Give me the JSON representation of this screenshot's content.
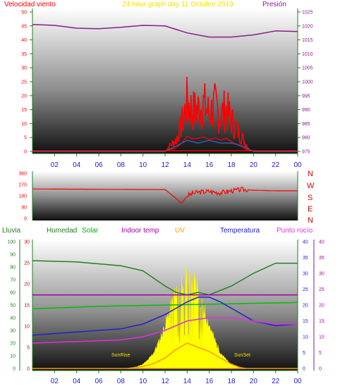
{
  "header": {
    "left": "Velocidad viento",
    "center": "24 hour graph day  11 Octubre 2019",
    "right": "Presión"
  },
  "legend": {
    "lluvia": "Lluvia",
    "humedad": "Humedad",
    "solar": "Solar",
    "indoor": "Indoor temp",
    "uv": "UV",
    "temperatura": "Temperatura",
    "rocio": "Punto rocío"
  },
  "compass": [
    "N",
    "W",
    "S",
    "E",
    "N"
  ],
  "annotations": {
    "sunrise": "SunRise",
    "sunset": "SunSet"
  },
  "colors": {
    "wind": "#ff0000",
    "gust_avg": "#3060c0",
    "pressure": "#8b1a8b",
    "humidity": "#208020",
    "solar_line": "#00c000",
    "indoor": "#a000a0",
    "temperature": "#2020d0",
    "dewpoint": "#e030e0",
    "uv": "#ff9900",
    "solar_fill": "#ffff00"
  },
  "chart_data": [
    {
      "type": "line",
      "title": "24 hour graph day  11 Octubre 2019",
      "x_ticks": [
        "02",
        "04",
        "06",
        "08",
        "10",
        "12",
        "14",
        "16",
        "18",
        "20",
        "22",
        "00"
      ],
      "y_left_label": "Velocidad viento",
      "y_left_ticks": [
        "50",
        "45",
        "40",
        "35",
        "30",
        "25",
        "20",
        "15",
        "10",
        "5",
        "0"
      ],
      "y_left_range": [
        0,
        50
      ],
      "y_right_label": "Presión",
      "y_right_ticks": [
        "1025",
        "1020",
        "1015",
        "1010",
        "1005",
        "1000",
        "995",
        "990",
        "985",
        "980",
        "975"
      ],
      "y_right_range": [
        975,
        1025
      ],
      "series": [
        {
          "name": "Presión",
          "x": [
            0,
            2,
            4,
            6,
            8,
            10,
            12,
            14,
            16,
            18,
            20,
            22,
            24
          ],
          "values": [
            1020.5,
            1020.2,
            1019.2,
            1019.0,
            1019.5,
            1020.2,
            1020.0,
            1017.5,
            1016.0,
            1016.0,
            1016.8,
            1018.2,
            1018.0
          ]
        },
        {
          "name": "Velocidad viento",
          "x": [
            0,
            11,
            12,
            12.5,
            13,
            13.5,
            14,
            14.5,
            15,
            15.5,
            16,
            16.5,
            17,
            17.5,
            18,
            18.5,
            19,
            19.5,
            20,
            24
          ],
          "values": [
            0,
            0,
            0,
            3,
            5,
            12,
            22,
            18,
            19,
            21,
            17,
            20,
            16,
            19,
            14,
            10,
            6,
            2,
            0,
            0
          ]
        },
        {
          "x": [
            0,
            12,
            13,
            14,
            15,
            16,
            17,
            18,
            19,
            20,
            24
          ],
          "values": [
            0,
            0,
            2,
            4,
            3,
            4,
            3,
            3,
            2,
            0,
            0
          ]
        }
      ]
    },
    {
      "type": "line",
      "y_left_ticks": [
        "360",
        "270",
        "180",
        "90",
        "0"
      ],
      "y_left_range": [
        0,
        360
      ],
      "series": [
        {
          "x": [
            0,
            12,
            13,
            13.5,
            14,
            14.5,
            15,
            16,
            17,
            18,
            19,
            20,
            22,
            24
          ],
          "values": [
            235,
            230,
            160,
            120,
            180,
            200,
            210,
            215,
            205,
            220,
            230,
            225,
            220,
            220
          ]
        }
      ]
    },
    {
      "type": "line",
      "x_ticks": [
        "02",
        "04",
        "06",
        "08",
        "10",
        "12",
        "14",
        "16",
        "18",
        "20",
        "22",
        "00"
      ],
      "y_lluvia_ticks": [
        "100",
        "90",
        "80",
        "70",
        "60",
        "50",
        "40",
        "30",
        "20",
        "10",
        "0"
      ],
      "y_humidity_ticks": [
        "30",
        "25",
        "20",
        "15",
        "10",
        "5",
        "0"
      ],
      "y_right_ticks": [
        "40",
        "35",
        "30",
        "25",
        "20",
        "15",
        "10",
        "5",
        "0"
      ],
      "series": [
        {
          "name": "Humedad",
          "x": [
            0,
            4,
            8,
            10,
            12,
            13,
            14,
            15,
            16,
            18,
            20,
            22,
            24
          ],
          "values": [
            85,
            84,
            81,
            77,
            65,
            60,
            58,
            60,
            58,
            65,
            75,
            83,
            83
          ]
        },
        {
          "name": "Solar",
          "x": [
            0,
            6,
            12,
            18,
            24
          ],
          "values": [
            47,
            49,
            50,
            51,
            52
          ]
        },
        {
          "name": "Indoor temp",
          "x": [
            0,
            24
          ],
          "values": [
            58,
            58
          ]
        },
        {
          "name": "Temperatura",
          "x": [
            0,
            4,
            8,
            10,
            12,
            13,
            14,
            15,
            16,
            17,
            18,
            20,
            22,
            24
          ],
          "values": [
            10.5,
            11.5,
            12.5,
            14,
            17,
            19,
            21,
            22.5,
            22.5,
            21,
            19,
            15,
            13.5,
            14
          ]
        },
        {
          "name": "Punto rocío",
          "x": [
            0,
            4,
            8,
            10,
            12,
            14,
            16,
            18,
            20,
            22,
            24
          ],
          "values": [
            8,
            8.5,
            9,
            10,
            12,
            15,
            16,
            16,
            15,
            14,
            14
          ]
        },
        {
          "name": "UV",
          "x": [
            9,
            10,
            11,
            12,
            13,
            14,
            15,
            16,
            17,
            18,
            19
          ],
          "values": [
            0,
            0.5,
            1.2,
            2.5,
            4.5,
            6,
            5,
            4,
            2.5,
            1,
            0
          ]
        }
      ]
    }
  ]
}
